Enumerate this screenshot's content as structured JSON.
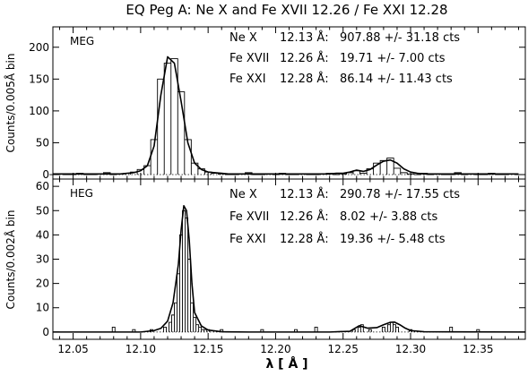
{
  "title": "EQ Peg A: Ne X and Fe XVII 12.26 / Fe XXI 12.28",
  "xlabel": "λ [ Å ]",
  "colors": {
    "ink": "#000000",
    "background": "#ffffff"
  },
  "chart_data": [
    {
      "type": "line",
      "panel_label": "MEG",
      "ylabel": "Counts/0.005Å bin",
      "xlim": [
        12.035,
        12.385
      ],
      "ylim": [
        -7,
        232
      ],
      "xticks": [
        12.05,
        12.1,
        12.15,
        12.2,
        12.25,
        12.3,
        12.35
      ],
      "xtick_labels": [
        "12.05",
        "12.10",
        "12.15",
        "12.20",
        "12.25",
        "12.30",
        "12.35"
      ],
      "yticks": [
        0,
        50,
        100,
        150,
        200
      ],
      "ytick_labels": [
        "0",
        "50",
        "100",
        "150",
        "200"
      ],
      "grid": false,
      "annotations": [
        {
          "ion": "Ne X",
          "wavelength": "12.13 Å:",
          "value": "907.88 +/- 31.18 cts"
        },
        {
          "ion": "Fe XVII",
          "wavelength": "12.26 Å:",
          "value": "19.71 +/- 7.00 cts"
        },
        {
          "ion": "Fe XXI",
          "wavelength": "12.28 Å:",
          "value": "86.14 +/- 11.43 cts"
        }
      ],
      "series": [
        {
          "style": "histogram",
          "bin_width": 0.005,
          "x": [
            12.035,
            12.04,
            12.045,
            12.05,
            12.055,
            12.06,
            12.065,
            12.07,
            12.075,
            12.08,
            12.085,
            12.09,
            12.095,
            12.1,
            12.105,
            12.11,
            12.115,
            12.12,
            12.125,
            12.13,
            12.135,
            12.14,
            12.145,
            12.15,
            12.155,
            12.16,
            12.165,
            12.17,
            12.175,
            12.18,
            12.185,
            12.19,
            12.195,
            12.2,
            12.205,
            12.21,
            12.215,
            12.22,
            12.225,
            12.23,
            12.235,
            12.24,
            12.245,
            12.25,
            12.255,
            12.26,
            12.265,
            12.27,
            12.275,
            12.28,
            12.285,
            12.29,
            12.295,
            12.3,
            12.305,
            12.31,
            12.315,
            12.32,
            12.325,
            12.33,
            12.335,
            12.34,
            12.345,
            12.35,
            12.355,
            12.36,
            12.365,
            12.37,
            12.375,
            12.38
          ],
          "values": [
            0,
            1,
            0,
            0,
            2,
            0,
            0,
            1,
            3,
            0,
            1,
            2,
            4,
            8,
            14,
            55,
            150,
            175,
            182,
            130,
            55,
            18,
            9,
            4,
            2,
            1,
            0,
            0,
            1,
            3,
            0,
            0,
            1,
            0,
            2,
            0,
            0,
            1,
            0,
            0,
            1,
            2,
            0,
            1,
            3,
            6,
            2,
            9,
            18,
            22,
            26,
            10,
            3,
            1,
            0,
            2,
            0,
            1,
            0,
            0,
            3,
            0,
            1,
            0,
            0,
            2,
            0,
            0,
            1,
            0
          ]
        },
        {
          "style": "model",
          "x": [
            12.035,
            12.04,
            12.045,
            12.05,
            12.055,
            12.06,
            12.065,
            12.07,
            12.075,
            12.08,
            12.085,
            12.09,
            12.095,
            12.1,
            12.105,
            12.11,
            12.115,
            12.12,
            12.125,
            12.13,
            12.135,
            12.14,
            12.145,
            12.15,
            12.155,
            12.16,
            12.165,
            12.17,
            12.175,
            12.18,
            12.185,
            12.19,
            12.195,
            12.2,
            12.205,
            12.21,
            12.215,
            12.22,
            12.225,
            12.23,
            12.235,
            12.24,
            12.245,
            12.25,
            12.255,
            12.26,
            12.265,
            12.27,
            12.275,
            12.28,
            12.285,
            12.29,
            12.295,
            12.3,
            12.305,
            12.31,
            12.315,
            12.32,
            12.325,
            12.33,
            12.335,
            12.34,
            12.345,
            12.35,
            12.355,
            12.36,
            12.365,
            12.37,
            12.375,
            12.38
          ],
          "values": [
            1,
            1,
            1,
            1,
            1,
            1,
            1,
            1,
            1,
            1,
            1,
            2,
            3,
            6,
            14,
            45,
            125,
            185,
            175,
            115,
            50,
            18,
            8,
            4,
            3,
            2,
            1,
            1,
            1,
            1,
            1,
            1,
            1,
            1,
            1,
            1,
            1,
            1,
            1,
            1,
            1,
            1,
            2,
            2,
            4,
            7,
            5,
            8,
            15,
            21,
            23,
            18,
            9,
            4,
            2,
            1,
            1,
            1,
            1,
            1,
            1,
            1,
            1,
            1,
            1,
            1,
            1,
            1,
            1,
            1
          ]
        }
      ]
    },
    {
      "type": "line",
      "panel_label": "HEG",
      "ylabel": "Counts/0.002Å bin",
      "xlim": [
        12.035,
        12.385
      ],
      "ylim": [
        -3,
        63
      ],
      "xticks": [
        12.05,
        12.1,
        12.15,
        12.2,
        12.25,
        12.3,
        12.35
      ],
      "xtick_labels": [
        "12.05",
        "12.10",
        "12.15",
        "12.20",
        "12.25",
        "12.30",
        "12.35"
      ],
      "yticks": [
        0,
        10,
        20,
        30,
        40,
        50,
        60
      ],
      "ytick_labels": [
        "0",
        "10",
        "20",
        "30",
        "40",
        "50",
        "60"
      ],
      "grid": false,
      "annotations": [
        {
          "ion": "Ne X",
          "wavelength": "12.13 Å:",
          "value": "290.78 +/- 17.55 cts"
        },
        {
          "ion": "Fe XVII",
          "wavelength": "12.26 Å:",
          "value": "8.02 +/- 3.88 cts"
        },
        {
          "ion": "Fe XXI",
          "wavelength": "12.28 Å:",
          "value": "19.36 +/- 5.48 cts"
        }
      ],
      "series": [
        {
          "style": "histogram",
          "bin_width": 0.002,
          "x": [
            12.08,
            12.095,
            12.108,
            12.118,
            12.122,
            12.124,
            12.126,
            12.128,
            12.13,
            12.132,
            12.134,
            12.136,
            12.138,
            12.14,
            12.142,
            12.144,
            12.146,
            12.148,
            12.15,
            12.16,
            12.19,
            12.215,
            12.23,
            12.258,
            12.262,
            12.264,
            12.27,
            12.28,
            12.284,
            12.286,
            12.288,
            12.29,
            12.3,
            12.33,
            12.35
          ],
          "values": [
            2,
            1,
            1,
            2,
            4,
            7,
            12,
            24,
            40,
            50,
            47,
            30,
            12,
            6,
            3,
            2,
            1,
            1,
            1,
            1,
            1,
            1,
            2,
            1,
            2,
            3,
            1,
            2,
            3,
            4,
            3,
            2,
            1,
            2,
            1
          ]
        },
        {
          "style": "model",
          "x": [
            12.035,
            12.1,
            12.11,
            12.115,
            12.12,
            12.124,
            12.128,
            12.13,
            12.132,
            12.134,
            12.136,
            12.138,
            12.14,
            12.145,
            12.15,
            12.16,
            12.18,
            12.24,
            12.255,
            12.262,
            12.268,
            12.275,
            12.28,
            12.285,
            12.288,
            12.292,
            12.296,
            12.3,
            12.31,
            12.385
          ],
          "values": [
            0,
            0,
            0.6,
            1.5,
            4.5,
            12,
            28,
            42,
            52,
            50,
            38,
            20,
            8,
            2.5,
            0.8,
            0.1,
            0,
            0,
            0.3,
            2.6,
            1.6,
            1.8,
            3.0,
            4.0,
            4.1,
            3.0,
            1.6,
            0.6,
            0.1,
            0
          ]
        }
      ]
    }
  ]
}
